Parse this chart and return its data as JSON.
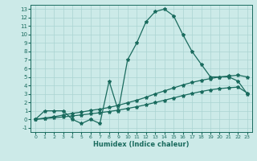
{
  "xlabel": "Humidex (Indice chaleur)",
  "bg_color": "#cceae8",
  "grid_color": "#aad4d2",
  "line_color": "#1a6b5e",
  "xlim": [
    -0.5,
    23.5
  ],
  "ylim": [
    -1.5,
    13.5
  ],
  "xticks": [
    0,
    1,
    2,
    3,
    4,
    5,
    6,
    7,
    8,
    9,
    10,
    11,
    12,
    13,
    14,
    15,
    16,
    17,
    18,
    19,
    20,
    21,
    22,
    23
  ],
  "yticks": [
    -1,
    0,
    1,
    2,
    3,
    4,
    5,
    6,
    7,
    8,
    9,
    10,
    11,
    12,
    13
  ],
  "series1_x": [
    0,
    1,
    2,
    3,
    4,
    5,
    6,
    7,
    8,
    9,
    10,
    11,
    12,
    13,
    14,
    15,
    16,
    17,
    18,
    19,
    20,
    21,
    22,
    23
  ],
  "series1_y": [
    0,
    1,
    1,
    1,
    0,
    -0.5,
    0,
    -0.5,
    4.5,
    1.0,
    7.0,
    9.0,
    11.5,
    12.7,
    13.0,
    12.2,
    10.0,
    8.0,
    6.5,
    5.0,
    5.0,
    5.0,
    4.5,
    3.0
  ],
  "series2_x": [
    0,
    1,
    2,
    3,
    4,
    5,
    6,
    7,
    8,
    9,
    10,
    11,
    12,
    13,
    14,
    15,
    16,
    17,
    18,
    19,
    20,
    21,
    22,
    23
  ],
  "series2_y": [
    0,
    0.15,
    0.3,
    0.5,
    0.7,
    0.85,
    1.05,
    1.2,
    1.4,
    1.65,
    1.95,
    2.25,
    2.6,
    3.0,
    3.35,
    3.7,
    4.05,
    4.35,
    4.6,
    4.8,
    5.0,
    5.1,
    5.2,
    5.0
  ],
  "series3_x": [
    0,
    1,
    2,
    3,
    4,
    5,
    6,
    7,
    8,
    9,
    10,
    11,
    12,
    13,
    14,
    15,
    16,
    17,
    18,
    19,
    20,
    21,
    22,
    23
  ],
  "series3_y": [
    0,
    0.08,
    0.18,
    0.28,
    0.4,
    0.52,
    0.65,
    0.78,
    0.92,
    1.08,
    1.28,
    1.48,
    1.72,
    1.98,
    2.25,
    2.52,
    2.8,
    3.05,
    3.28,
    3.48,
    3.62,
    3.72,
    3.8,
    3.1
  ],
  "marker": "*",
  "markersize": 3,
  "lw": 0.9
}
